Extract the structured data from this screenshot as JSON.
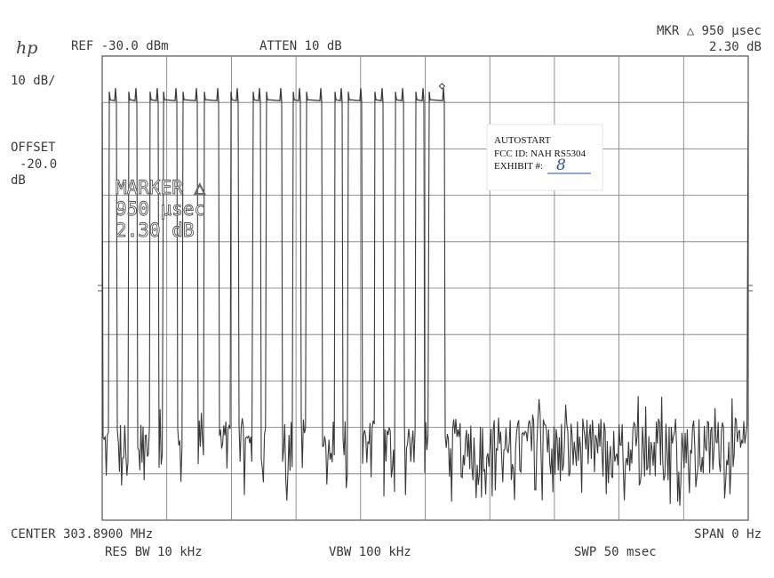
{
  "header": {
    "logo": "hp",
    "ref_level": "REF -30.0 dBm",
    "attenuation": "ATTEN 10 dB",
    "marker_readout_line1": "MKR △ 950 µsec",
    "marker_readout_line2": "2.30 dB",
    "scale": "10 dB/",
    "offset_label": "OFFSET",
    "offset_value": "-20.0",
    "offset_unit": "dB"
  },
  "marker_annotation": {
    "line1": "MARKER △",
    "line2": "950 µsec",
    "line3": "2.30 dB"
  },
  "exhibit_label": {
    "line1": "AUTOSTART",
    "line2": "FCC ID: NAH  RS5304",
    "line3": "EXHIBIT #:",
    "exhibit_number": "8",
    "ink_color": "#2a4fa8"
  },
  "footer": {
    "center": "CENTER 303.8900 MHz",
    "span": "SPAN 0 Hz",
    "res_bw": "RES BW 10 kHz",
    "vbw": "VBW 100 kHz",
    "sweep": "SWP 50 msec"
  },
  "chart_data": {
    "type": "line",
    "xlabel": "",
    "ylabel": "",
    "xlim_ms": [
      0,
      50
    ],
    "ylim_dbm": [
      -130,
      -30
    ],
    "x_divisions": 10,
    "y_divisions": 10,
    "grid": true,
    "trace_color": "#3a3a3a",
    "pulse_level_dbm": -40,
    "noise_floor_dbm": [
      -127,
      -108
    ],
    "pulses_ms": [
      [
        0.55,
        1.1
      ],
      [
        2.06,
        2.68
      ],
      [
        3.71,
        4.33
      ],
      [
        4.75,
        5.78
      ],
      [
        6.26,
        7.36
      ],
      [
        7.91,
        9.01
      ],
      [
        9.97,
        10.52
      ],
      [
        11.69,
        12.24
      ],
      [
        12.72,
        13.89
      ],
      [
        14.79,
        15.34
      ],
      [
        15.82,
        16.99
      ],
      [
        18.02,
        18.57
      ],
      [
        19.05,
        20.08
      ],
      [
        21.11,
        21.73
      ],
      [
        22.7,
        23.32
      ],
      [
        24.28,
        24.9
      ],
      [
        25.31,
        26.48
      ]
    ],
    "marker": {
      "x_ms": 26.3,
      "y_dbm": -36.5
    }
  }
}
